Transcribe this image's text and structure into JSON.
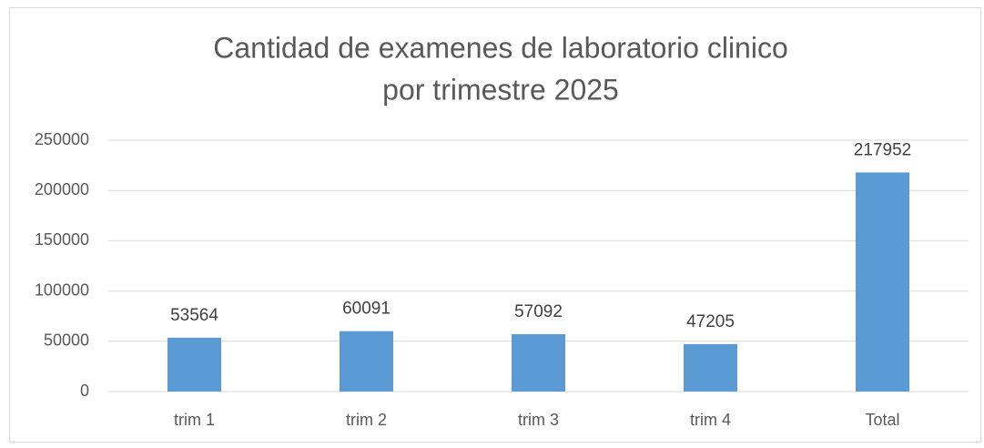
{
  "chart_data": {
    "type": "bar",
    "title": [
      "Cantidad de examenes de laboratorio clinico",
      "por trimestre 2025"
    ],
    "categories": [
      "trim 1",
      "trim 2",
      "trim 3",
      "trim 4",
      "Total"
    ],
    "values": [
      53564,
      60091,
      57092,
      47205,
      217952
    ],
    "color": "#5b9bd5",
    "ylim": [
      0,
      250000
    ],
    "yticks": [
      0,
      50000,
      100000,
      150000,
      200000,
      250000
    ],
    "grid": true
  }
}
